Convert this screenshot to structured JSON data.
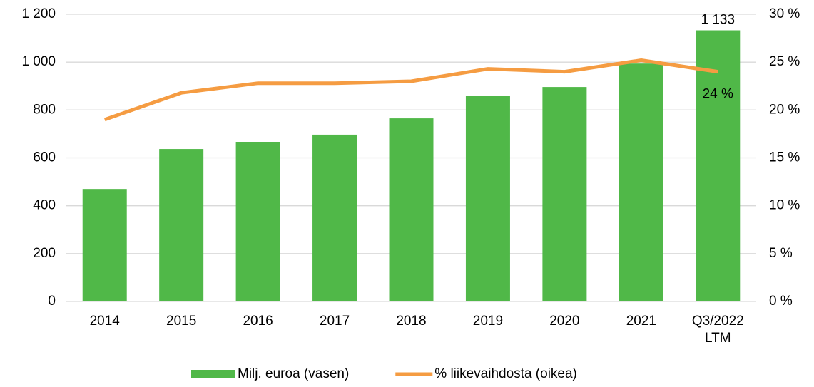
{
  "chart_data": {
    "type": "bar_line",
    "categories": [
      "2014",
      "2015",
      "2016",
      "2017",
      "2018",
      "2019",
      "2020",
      "2021",
      "Q3/2022\nLTM"
    ],
    "series": [
      {
        "name": "Milj. euroa (vasen)",
        "type": "bar",
        "color": "#50b848",
        "axis": "y",
        "values": [
          470,
          637,
          667,
          697,
          765,
          860,
          896,
          994,
          1133
        ],
        "value_labels": [
          null,
          null,
          null,
          null,
          null,
          null,
          null,
          null,
          "1 133"
        ]
      },
      {
        "name": "% liikevaihdosta (oikea)",
        "type": "line",
        "color": "#f59c42",
        "axis": "y2",
        "values": [
          19.0,
          21.8,
          22.8,
          22.8,
          23.0,
          24.3,
          24.0,
          25.2,
          24.0
        ],
        "value_labels": [
          null,
          null,
          null,
          null,
          null,
          null,
          null,
          null,
          "24 %"
        ]
      }
    ],
    "ylim": [
      0,
      1200
    ],
    "yticks": [
      0,
      200,
      400,
      600,
      800,
      {
        "value": 1000,
        "label": "1 000"
      },
      {
        "value": 1200,
        "label": "1 200"
      }
    ],
    "y2lim": [
      0,
      30
    ],
    "y2ticks": [
      {
        "value": 0,
        "label": "0 %"
      },
      {
        "value": 5,
        "label": "5 %"
      },
      {
        "value": 10,
        "label": "10 %"
      },
      {
        "value": 15,
        "label": "15 %"
      },
      {
        "value": 20,
        "label": "20 %"
      },
      {
        "value": 25,
        "label": "25 %"
      },
      {
        "value": 30,
        "label": "30 %"
      }
    ],
    "grid": true,
    "legend": "bottom"
  }
}
